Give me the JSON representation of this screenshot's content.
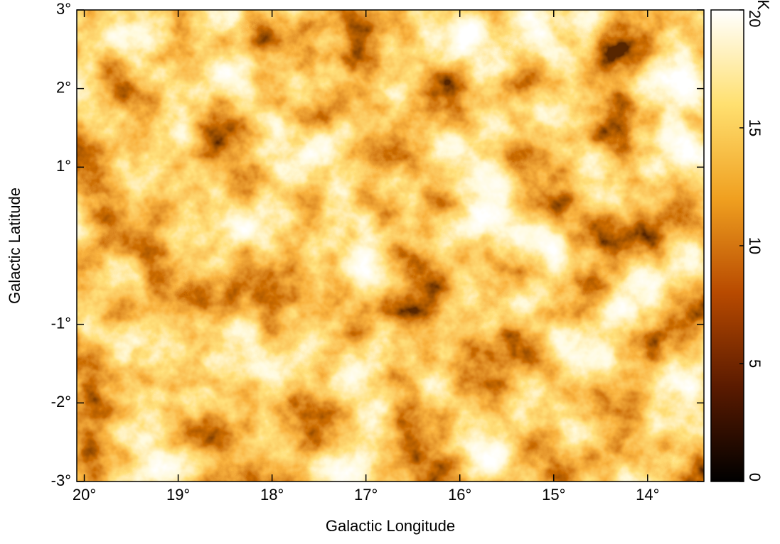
{
  "chart_data": {
    "type": "heatmap",
    "x_label": "Galactic Longitude",
    "y_label": "Galactic Latitude",
    "xlim": [
      20.08,
      13.4
    ],
    "xticks": [
      {
        "value": 20,
        "label": "20°"
      },
      {
        "value": 19,
        "label": "19°"
      },
      {
        "value": 18,
        "label": "18°"
      },
      {
        "value": 17,
        "label": "17°"
      },
      {
        "value": 16,
        "label": "16°"
      },
      {
        "value": 15,
        "label": "15°"
      },
      {
        "value": 14,
        "label": "14°"
      }
    ],
    "ylim": [
      -3,
      3
    ],
    "yticks": [
      {
        "value": 3,
        "label": "3°"
      },
      {
        "value": 2,
        "label": "2°"
      },
      {
        "value": 1,
        "label": "1°"
      },
      {
        "value": -1,
        "label": "-1°"
      },
      {
        "value": -2,
        "label": "-2°"
      },
      {
        "value": -3,
        "label": "-3°"
      }
    ],
    "colorbar": {
      "label": "Tb mK",
      "lim": [
        0,
        20
      ],
      "ticks": [
        0,
        5,
        10,
        15,
        20
      ],
      "colormap": [
        "#000000",
        "#5a1a00",
        "#b84a00",
        "#f0a020",
        "#ffe070",
        "#ffffff"
      ]
    }
  }
}
